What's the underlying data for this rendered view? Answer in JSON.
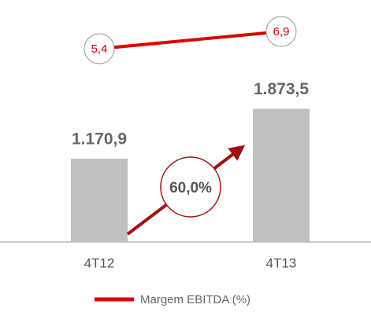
{
  "chart_data": {
    "type": "bar",
    "categories": [
      "4T12",
      "4T13"
    ],
    "series": [
      {
        "name": "EBITDA",
        "color": "#c0c0c0",
        "values": [
          1170.9,
          1873.5
        ],
        "value_labels": [
          "1.170,9",
          "1.873,5"
        ]
      },
      {
        "name": "Margem EBITDA (%)",
        "type": "line",
        "axis": "y2",
        "color": "#e00000",
        "values": [
          5.4,
          6.9
        ],
        "value_labels": [
          "5,4",
          "6,9"
        ]
      }
    ],
    "ylim": [
      0,
      2000
    ],
    "y2lim": [
      0,
      8
    ],
    "annotation": "60,0%",
    "legend": "bottom"
  }
}
